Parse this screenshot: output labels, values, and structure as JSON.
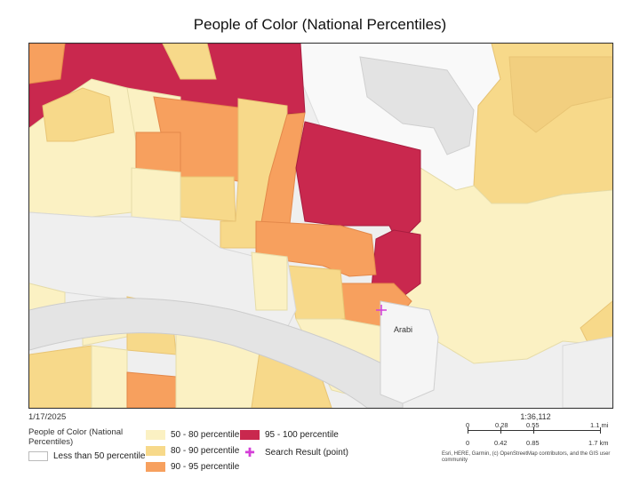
{
  "title": "People of Color (National Percentiles)",
  "date": "1/17/2025",
  "legend": {
    "title": "People of Color (National Percentiles)",
    "items": [
      {
        "label": "Less than 50 percentile",
        "color": "#ffffff"
      },
      {
        "label": "50 - 80 percentile",
        "color": "#fbf1c3"
      },
      {
        "label": "80 - 90 percentile",
        "color": "#f7d98a"
      },
      {
        "label": "90 - 95 percentile",
        "color": "#f7a05e"
      },
      {
        "label": "95 - 100 percentile",
        "color": "#c9284e"
      },
      {
        "label": "Search Result (point)",
        "icon": "plus-icon",
        "color": "#d43fd8"
      }
    ]
  },
  "map": {
    "place_label": "Arabi"
  },
  "scale": {
    "ratio": "1:36,112",
    "mi_ticks": [
      "0",
      "0.28",
      "0.55",
      "1.1 mi"
    ],
    "km_ticks": [
      "0",
      "0.42",
      "0.85",
      "1.7 km"
    ],
    "attribution": "Esri, HERE, Garmin, (c) OpenStreetMap contributors, and the GIS user community"
  }
}
